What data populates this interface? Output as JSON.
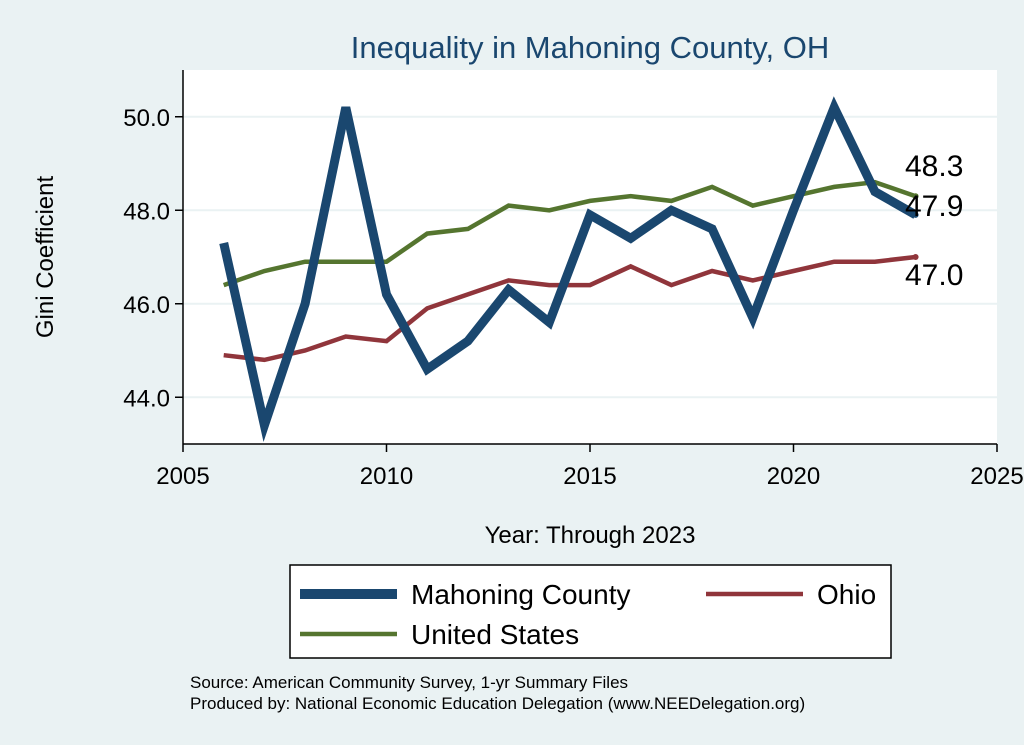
{
  "chart_data": {
    "type": "line",
    "title": "Inequality in Mahoning County, OH",
    "xlabel": "Year: Through 2023",
    "ylabel": "Gini Coefficient",
    "xlim": [
      2005,
      2025
    ],
    "ylim": [
      43.0,
      51.0
    ],
    "xticks": [
      "2005",
      "2010",
      "2015",
      "2020",
      "2025"
    ],
    "yticks": [
      "44.0",
      "46.0",
      "48.0",
      "50.0"
    ],
    "grid": true,
    "legend_position": "bottom",
    "x": [
      2006,
      2007,
      2008,
      2009,
      2010,
      2011,
      2012,
      2013,
      2014,
      2015,
      2016,
      2017,
      2018,
      2019,
      2020,
      2021,
      2022,
      2023
    ],
    "series": [
      {
        "name": "Mahoning County",
        "color": "#1a476f",
        "values": [
          47.3,
          43.4,
          46.0,
          50.2,
          46.2,
          44.6,
          45.2,
          46.3,
          45.6,
          47.9,
          47.4,
          48.0,
          47.6,
          45.7,
          48.0,
          50.2,
          48.4,
          47.9
        ],
        "end_label": "47.9"
      },
      {
        "name": "Ohio",
        "color": "#90353b",
        "values": [
          44.9,
          44.8,
          45.0,
          45.3,
          45.2,
          45.9,
          46.2,
          46.5,
          46.4,
          46.4,
          46.8,
          46.4,
          46.7,
          46.5,
          46.7,
          46.9,
          46.9,
          47.0
        ],
        "end_label": "47.0"
      },
      {
        "name": "United States",
        "color": "#55752f",
        "values": [
          46.4,
          46.7,
          46.9,
          46.9,
          46.9,
          47.5,
          47.6,
          48.1,
          48.0,
          48.2,
          48.3,
          48.2,
          48.5,
          48.1,
          48.3,
          48.5,
          48.6,
          48.3
        ],
        "end_label": "48.3"
      }
    ],
    "notes": [
      "Source: American Community Survey, 1-yr Summary Files",
      "Produced by: National Economic Education Delegation (www.NEEDelegation.org)"
    ]
  }
}
